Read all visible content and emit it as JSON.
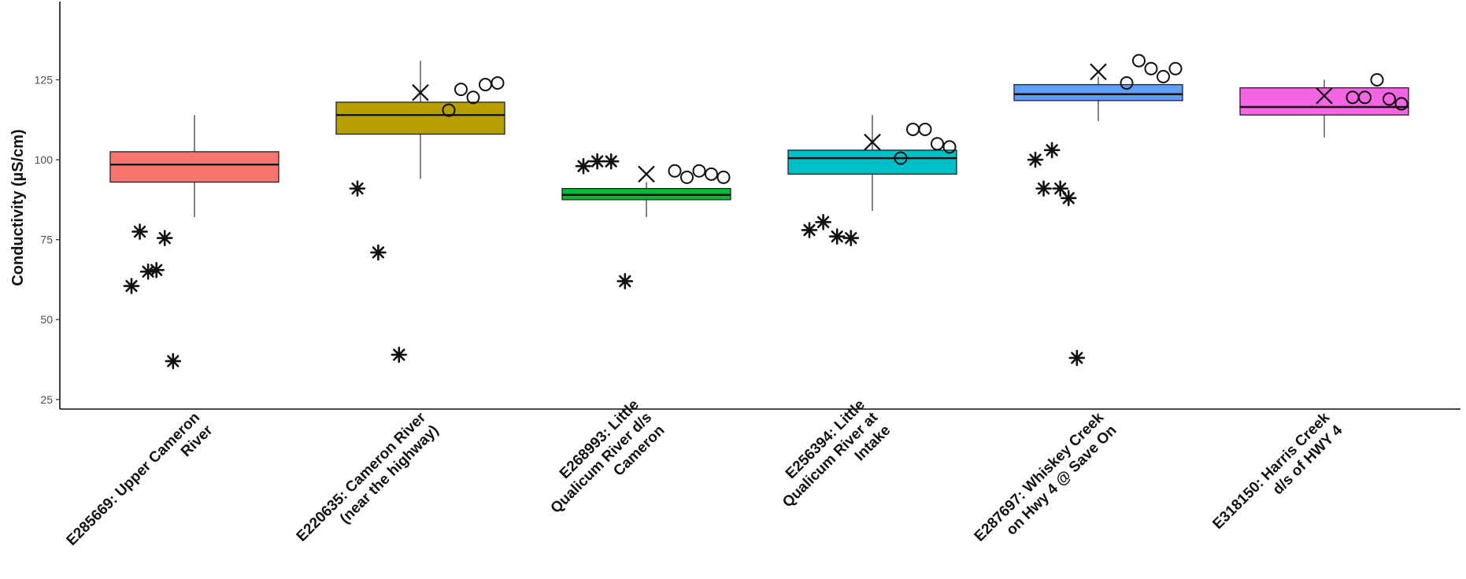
{
  "chart_data": {
    "type": "box",
    "title": "",
    "xlabel": "",
    "ylabel": "Conductivity (µS/cm)",
    "ylim": [
      22,
      148
    ],
    "yticks": [
      25,
      50,
      75,
      100,
      125
    ],
    "grid": false,
    "legend": "none",
    "categories": [
      {
        "label_lines": [
          "E285669: Upper Cameron",
          "River"
        ],
        "color": "#F8766D",
        "box": {
          "whisker_low": 82,
          "q1": 93,
          "median": 98.5,
          "q3": 102.5,
          "whisker_high": 114
        },
        "mean": null,
        "asterisks": [
          60.5,
          77.5,
          65,
          65.5,
          75.5,
          37
        ],
        "circles": []
      },
      {
        "label_lines": [
          "E220635: Cameron River",
          "(near the highway)"
        ],
        "color": "#B79F00",
        "box": {
          "whisker_low": 94,
          "q1": 108,
          "median": 114,
          "q3": 118,
          "whisker_high": 131
        },
        "mean": 121,
        "asterisks": [
          91,
          71,
          39
        ],
        "circles": [
          115.5,
          122,
          119.5,
          123.5,
          124
        ]
      },
      {
        "label_lines": [
          "E268993: Little",
          "Qualicum River d/s",
          "Cameron"
        ],
        "color": "#00BA38",
        "box": {
          "whisker_low": 82,
          "q1": 87.5,
          "median": 89,
          "q3": 91,
          "whisker_high": 93
        },
        "mean": 95.5,
        "asterisks": [
          98,
          99.5,
          99.5,
          62
        ],
        "circles": [
          96.5,
          94.5,
          96.5,
          95.5,
          94.5
        ]
      },
      {
        "label_lines": [
          "E256394: Little",
          "Qualicum River at",
          "Intake"
        ],
        "color": "#00BFC4",
        "box": {
          "whisker_low": 84,
          "q1": 95.5,
          "median": 100.5,
          "q3": 103,
          "whisker_high": 114
        },
        "mean": 105.5,
        "asterisks": [
          78,
          80.5,
          76,
          75.5
        ],
        "circles": [
          100.5,
          109.5,
          109.5,
          105,
          104
        ]
      },
      {
        "label_lines": [
          "E287697: Whiskey Creek",
          "on Hwy 4 @ Save On"
        ],
        "color": "#619CFF",
        "box": {
          "whisker_low": 112,
          "q1": 118.5,
          "median": 120.5,
          "q3": 123.5,
          "whisker_high": 126
        },
        "mean": 127.5,
        "asterisks": [
          100,
          91,
          103,
          91,
          88,
          38
        ],
        "circles": [
          124,
          131,
          128.5,
          126,
          128.5
        ]
      },
      {
        "label_lines": [
          "E318150: Harris Creek",
          "d/s of HWY 4"
        ],
        "color": "#F564E3",
        "box": {
          "whisker_low": 107,
          "q1": 114,
          "median": 116.5,
          "q3": 122.5,
          "whisker_high": 125
        },
        "mean": 120,
        "asterisks": [],
        "circles": [
          119.5,
          119.5,
          125,
          119,
          117.5
        ]
      }
    ]
  }
}
